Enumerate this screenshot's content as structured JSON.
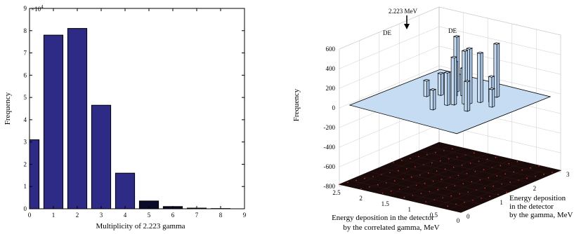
{
  "chart_data": [
    {
      "type": "bar",
      "xlabel": "Multiplicity of 2.223 gamma",
      "ylabel": "Frequency",
      "exponent_label": "×10",
      "exponent_power": "4",
      "categories": [
        0,
        1,
        2,
        3,
        4,
        5,
        6,
        7,
        8
      ],
      "values": [
        31000,
        78000,
        81000,
        46500,
        16000,
        3500,
        1000,
        300,
        100
      ],
      "xlim": [
        0,
        9
      ],
      "ylim": [
        0,
        90000
      ],
      "xticks": [
        "0",
        "1",
        "2",
        "3",
        "4",
        "5",
        "6",
        "7",
        "8",
        "9"
      ],
      "yticks": [
        "0",
        "1",
        "2",
        "3",
        "4",
        "5",
        "6",
        "7",
        "8",
        "9"
      ],
      "colors": {
        "bar": "#2e2b86",
        "bar_tail": "#0a0a2a"
      }
    },
    {
      "type": "bar3d",
      "zlabel": "Frequency",
      "xlabel": "Energy deposition  in the detector by the correlated gamma, MeV",
      "xlabel_line1": "Energy deposition  in the detector",
      "xlabel_line2": "by the correlated gamma, MeV",
      "ylabel_line1": "Energy deposition",
      "ylabel_line2": "in the detector",
      "ylabel_line3": "by the gamma, MeV",
      "zticks": [
        "600",
        "400",
        "200",
        "0",
        "-200",
        "-400",
        "-600",
        "-800"
      ],
      "xticks": [
        "2.5",
        "2",
        "1.5",
        "1",
        "0.5",
        "0"
      ],
      "yticks": [
        "0",
        "1",
        "2",
        "3"
      ],
      "zlim": [
        -800,
        600
      ],
      "annotations": [
        {
          "text": "2.223  MeV"
        },
        {
          "text": "DE"
        },
        {
          "text": "DE"
        }
      ],
      "grid": true,
      "colors": {
        "bars": "#c6dcf2",
        "edges": "#000000",
        "floor": "#1a0a0a",
        "floor_dots": "#c0392b"
      }
    }
  ]
}
